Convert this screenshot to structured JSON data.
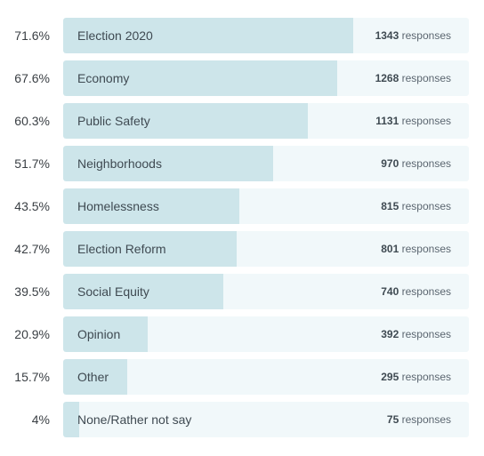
{
  "response_word": "responses",
  "chart_data": {
    "type": "bar",
    "orientation": "horizontal",
    "categories": [
      "Election 2020",
      "Economy",
      "Public Safety",
      "Neighborhoods",
      "Homelessness",
      "Election Reform",
      "Social Equity",
      "Opinion",
      "Other",
      "None/Rather not say"
    ],
    "values": [
      71.6,
      67.6,
      60.3,
      51.7,
      43.5,
      42.7,
      39.5,
      20.9,
      15.7,
      4
    ],
    "value_labels": [
      "71.6%",
      "67.6%",
      "60.3%",
      "51.7%",
      "43.5%",
      "42.7%",
      "39.5%",
      "20.9%",
      "15.7%",
      "4%"
    ],
    "counts": [
      1343,
      1268,
      1131,
      970,
      815,
      801,
      740,
      392,
      295,
      75
    ],
    "xlim": [
      0,
      100
    ],
    "colors": {
      "fill": "#cde5ea",
      "track": "#f1f8fa"
    }
  }
}
